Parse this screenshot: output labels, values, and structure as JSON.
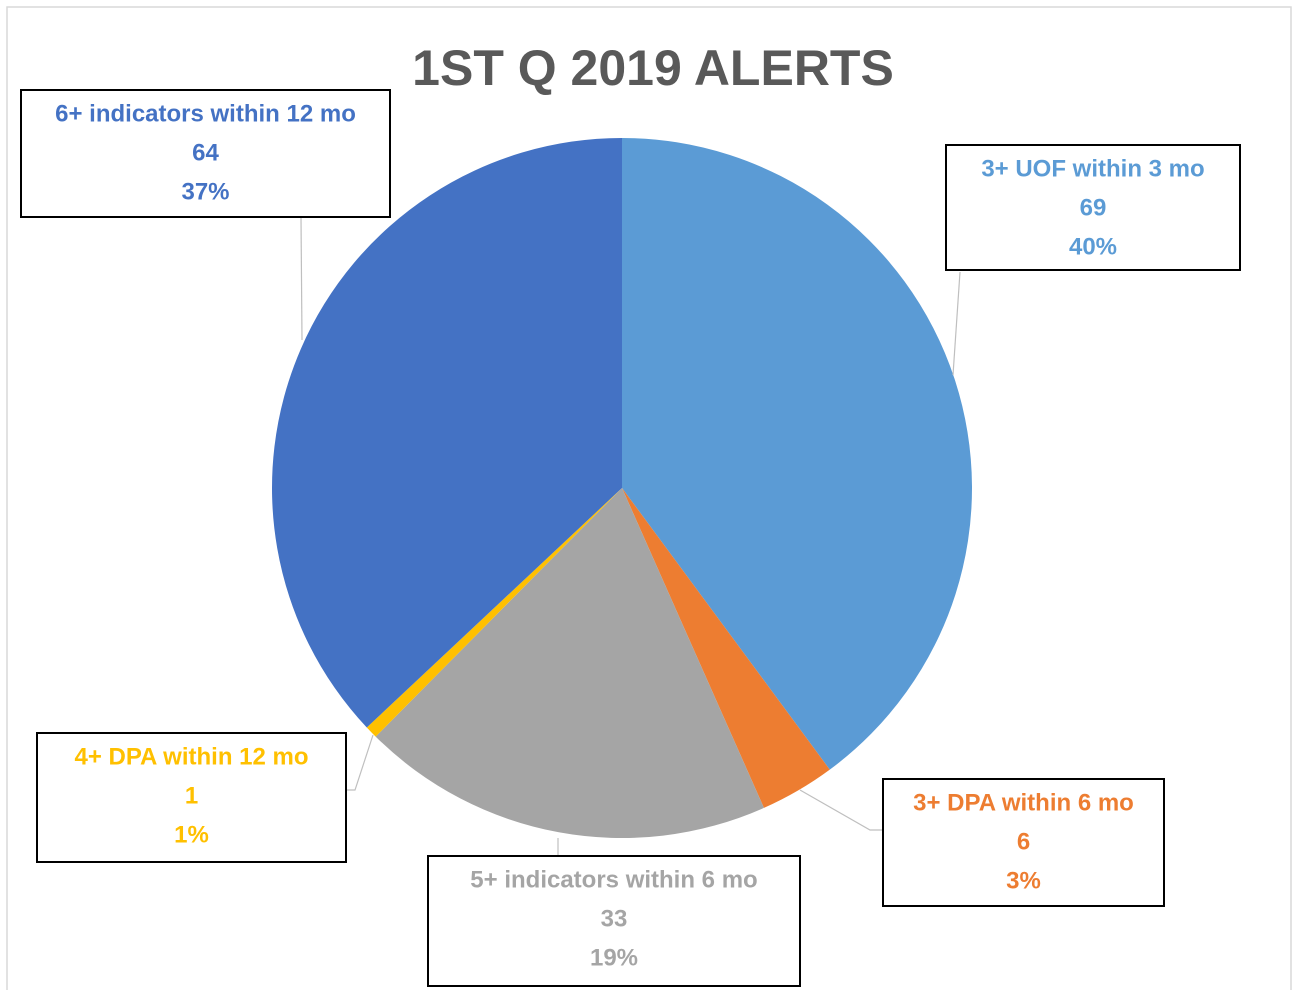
{
  "chart_data": {
    "type": "pie",
    "title": "1ST Q 2019 ALERTS",
    "categories": [
      "3+ UOF within 3 mo",
      "3+ DPA within 6 mo",
      "5+ indicators within 6 mo",
      "4+ DPA within 12 mo",
      "6+ indicators within 12 mo"
    ],
    "values": [
      69,
      6,
      33,
      1,
      64
    ],
    "percent_labels": [
      "40%",
      "3%",
      "19%",
      "1%",
      "37%"
    ],
    "colors": [
      "#5b9bd5",
      "#ed7d31",
      "#a5a5a5",
      "#ffc000",
      "#4472c4"
    ]
  }
}
